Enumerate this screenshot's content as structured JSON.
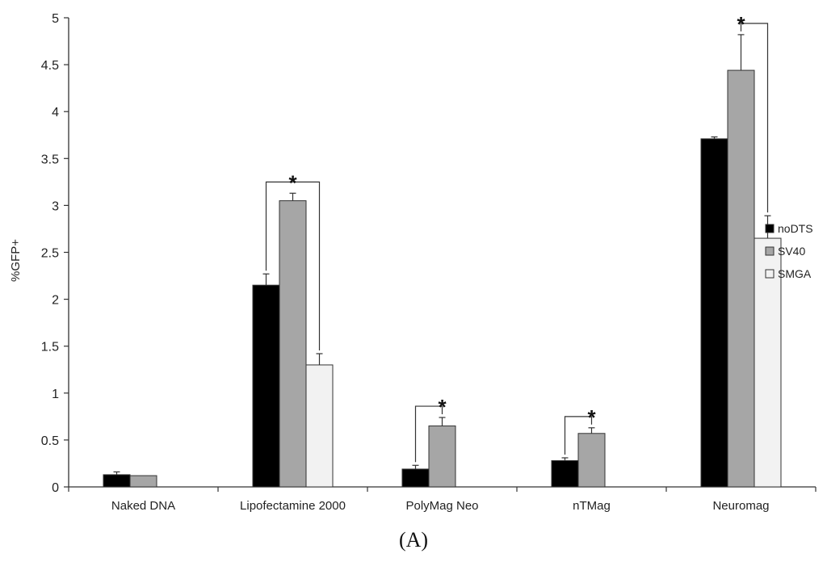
{
  "chart_data": {
    "type": "bar",
    "ylabel": "%GFP+",
    "xlabel": "",
    "ylim": [
      0,
      5
    ],
    "yticks": [
      "0",
      "0.5",
      "1",
      "1.5",
      "2",
      "2.5",
      "3",
      "3.5",
      "4",
      "4.5",
      "5"
    ],
    "categories": [
      "Naked DNA",
      "Lipofectamine 2000",
      "PolyMag Neo",
      "nTMag",
      "Neuromag"
    ],
    "series": [
      {
        "name": "noDTS",
        "color": "#000000",
        "values": [
          0.13,
          2.15,
          0.19,
          0.28,
          3.71
        ],
        "errors": [
          0.03,
          0.12,
          0.04,
          0.03,
          0.02
        ]
      },
      {
        "name": "SV40",
        "color": "#a6a6a6",
        "values": [
          0.12,
          3.05,
          0.65,
          0.57,
          4.44
        ],
        "errors": [
          0.0,
          0.08,
          0.09,
          0.06,
          0.38
        ]
      },
      {
        "name": "SMGA",
        "color": "#f2f2f2",
        "values": [
          null,
          1.3,
          null,
          null,
          2.65
        ],
        "errors": [
          null,
          0.12,
          null,
          null,
          0.24
        ]
      }
    ],
    "significance": [
      {
        "category": "Lipofectamine 2000",
        "from": "noDTS",
        "to": "SMGA",
        "star_over": "SV40",
        "label": "*"
      },
      {
        "category": "PolyMag Neo",
        "from": "noDTS",
        "to": "SV40",
        "star_over": "SV40",
        "label": "*"
      },
      {
        "category": "nTMag",
        "from": "noDTS",
        "to": "SV40",
        "star_over": "SV40",
        "label": "*"
      },
      {
        "category": "Neuromag",
        "from": "SV40",
        "to": "SMGA",
        "star_over": "SV40",
        "label": "*"
      }
    ],
    "legend_position": "right",
    "grid": false,
    "caption": "(A)"
  }
}
